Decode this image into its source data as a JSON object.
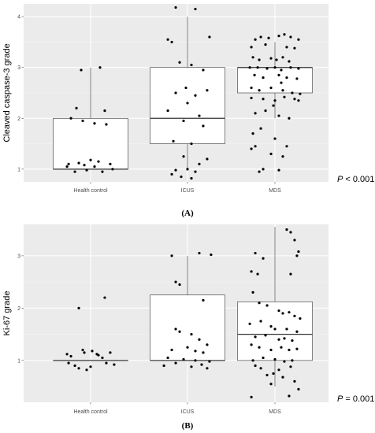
{
  "chart_data": [
    {
      "type": "box",
      "panel_label": "(A)",
      "ylabel": "Cleaved caspase-3 grade",
      "categories": [
        "Health control",
        "ICUS",
        "MDS"
      ],
      "yticks": [
        1,
        2,
        3,
        4
      ],
      "ylim": [
        0.75,
        4.25
      ],
      "annotation": {
        "p_prefix": "P",
        "p_rest": " < 0.001"
      },
      "boxes": [
        {
          "q1": 1.0,
          "median": 1.0,
          "q3": 2.0,
          "whisker_low": 1.0,
          "whisker_high": 3.0
        },
        {
          "q1": 1.5,
          "median": 2.0,
          "q3": 3.0,
          "whisker_low": 1.0,
          "whisker_high": 4.0
        },
        {
          "q1": 2.5,
          "median": 3.0,
          "q3": 3.0,
          "whisker_low": 2.0,
          "whisker_high": 3.5
        }
      ],
      "points": [
        [
          [
            -0.12,
            2.95
          ],
          [
            0.12,
            3.0
          ],
          [
            -0.18,
            2.2
          ],
          [
            0.18,
            2.15
          ],
          [
            -0.25,
            2.0
          ],
          [
            -0.1,
            1.95
          ],
          [
            0.05,
            1.9
          ],
          [
            0.2,
            1.88
          ],
          [
            -0.28,
            1.1
          ],
          [
            -0.3,
            1.05
          ],
          [
            -0.15,
            1.12
          ],
          [
            0.0,
            1.18
          ],
          [
            0.1,
            1.15
          ],
          [
            0.25,
            1.1
          ],
          [
            -0.05,
            0.98
          ],
          [
            0.15,
            0.95
          ],
          [
            -0.2,
            0.95
          ],
          [
            0.28,
            1.0
          ],
          [
            0.05,
            1.05
          ],
          [
            -0.08,
            1.08
          ]
        ],
        [
          [
            -0.15,
            4.18
          ],
          [
            0.1,
            4.15
          ],
          [
            -0.25,
            3.55
          ],
          [
            -0.2,
            3.5
          ],
          [
            0.28,
            3.6
          ],
          [
            -0.1,
            3.1
          ],
          [
            0.05,
            3.05
          ],
          [
            0.2,
            2.95
          ],
          [
            -0.02,
            2.6
          ],
          [
            0.25,
            2.55
          ],
          [
            -0.15,
            2.5
          ],
          [
            0.1,
            2.45
          ],
          [
            0.0,
            2.3
          ],
          [
            -0.25,
            2.15
          ],
          [
            0.15,
            2.05
          ],
          [
            -0.05,
            1.95
          ],
          [
            0.2,
            1.85
          ],
          [
            -0.18,
            1.55
          ],
          [
            0.05,
            1.5
          ],
          [
            -0.05,
            1.25
          ],
          [
            0.25,
            1.2
          ],
          [
            0.15,
            1.1
          ],
          [
            0.0,
            1.0
          ],
          [
            -0.15,
            0.98
          ],
          [
            0.1,
            0.95
          ],
          [
            -0.2,
            0.9
          ],
          [
            -0.08,
            0.85
          ],
          [
            0.05,
            0.82
          ]
        ],
        [
          [
            -0.25,
            3.55
          ],
          [
            -0.18,
            3.6
          ],
          [
            -0.08,
            3.58
          ],
          [
            0.05,
            3.62
          ],
          [
            0.12,
            3.65
          ],
          [
            0.2,
            3.6
          ],
          [
            0.3,
            3.55
          ],
          [
            -0.3,
            3.4
          ],
          [
            -0.12,
            3.45
          ],
          [
            0.15,
            3.4
          ],
          [
            0.25,
            3.38
          ],
          [
            -0.28,
            3.2
          ],
          [
            -0.2,
            3.15
          ],
          [
            -0.05,
            3.18
          ],
          [
            0.02,
            3.15
          ],
          [
            0.1,
            3.2
          ],
          [
            0.18,
            3.12
          ],
          [
            -0.32,
            3.0
          ],
          [
            -0.22,
            3.0
          ],
          [
            -0.1,
            2.98
          ],
          [
            0.0,
            3.0
          ],
          [
            0.08,
            2.95
          ],
          [
            0.2,
            3.0
          ],
          [
            0.3,
            2.98
          ],
          [
            -0.26,
            2.85
          ],
          [
            -0.15,
            2.8
          ],
          [
            0.05,
            2.85
          ],
          [
            0.15,
            2.8
          ],
          [
            0.28,
            2.78
          ],
          [
            -0.3,
            2.6
          ],
          [
            -0.2,
            2.55
          ],
          [
            -0.05,
            2.6
          ],
          [
            0.1,
            2.55
          ],
          [
            0.22,
            2.5
          ],
          [
            0.32,
            2.48
          ],
          [
            -0.3,
            2.4
          ],
          [
            -0.15,
            2.38
          ],
          [
            0.0,
            2.35
          ],
          [
            0.12,
            2.42
          ],
          [
            0.25,
            2.38
          ],
          [
            0.3,
            2.35
          ],
          [
            -0.25,
            2.1
          ],
          [
            -0.12,
            2.15
          ],
          [
            0.05,
            2.05
          ],
          [
            0.18,
            2.0
          ],
          [
            -0.18,
            1.8
          ],
          [
            -0.28,
            1.7
          ],
          [
            0.0,
            1.6
          ],
          [
            -0.25,
            1.45
          ],
          [
            0.15,
            1.45
          ],
          [
            -0.3,
            1.4
          ],
          [
            -0.05,
            1.3
          ],
          [
            0.1,
            1.25
          ],
          [
            -0.15,
            1.0
          ],
          [
            -0.2,
            0.95
          ],
          [
            0.05,
            0.98
          ],
          [
            -0.02,
            2.25
          ],
          [
            0.08,
            2.7
          ]
        ]
      ]
    },
    {
      "type": "box",
      "panel_label": "(B)",
      "ylabel": "Ki-67 grade",
      "categories": [
        "Health control",
        "ICUS",
        "MDS"
      ],
      "yticks": [
        1,
        2,
        3
      ],
      "ylim": [
        0.2,
        3.6
      ],
      "annotation": {
        "p_prefix": "P",
        "p_rest": " = 0.001"
      },
      "boxes": [
        {
          "q1": 1.0,
          "median": 1.0,
          "q3": 1.0,
          "whisker_low": 1.0,
          "whisker_high": 1.0
        },
        {
          "q1": 1.0,
          "median": 1.0,
          "q3": 2.25,
          "whisker_low": 1.0,
          "whisker_high": 3.0
        },
        {
          "q1": 1.0,
          "median": 1.5,
          "q3": 2.12,
          "whisker_low": 0.5,
          "whisker_high": 3.55
        }
      ],
      "points": [
        [
          [
            0.18,
            2.2
          ],
          [
            -0.15,
            2.0
          ],
          [
            -0.1,
            1.2
          ],
          [
            0.02,
            1.18
          ],
          [
            0.25,
            1.15
          ],
          [
            -0.3,
            1.12
          ],
          [
            -0.25,
            1.08
          ],
          [
            0.1,
            1.1
          ],
          [
            0.2,
            0.95
          ],
          [
            0.3,
            0.92
          ],
          [
            -0.2,
            0.9
          ],
          [
            -0.15,
            0.85
          ],
          [
            -0.05,
            0.82
          ],
          [
            0.0,
            0.88
          ],
          [
            -0.28,
            0.95
          ],
          [
            0.15,
            1.05
          ],
          [
            -0.08,
            1.15
          ],
          [
            0.08,
            1.12
          ]
        ],
        [
          [
            -0.2,
            3.0
          ],
          [
            0.15,
            3.05
          ],
          [
            0.3,
            3.02
          ],
          [
            -0.15,
            2.5
          ],
          [
            -0.1,
            2.45
          ],
          [
            0.2,
            2.15
          ],
          [
            -0.15,
            1.6
          ],
          [
            -0.1,
            1.55
          ],
          [
            0.05,
            1.5
          ],
          [
            0.15,
            1.4
          ],
          [
            0.25,
            1.3
          ],
          [
            -0.2,
            1.2
          ],
          [
            0.0,
            1.25
          ],
          [
            0.1,
            1.18
          ],
          [
            0.2,
            1.15
          ],
          [
            -0.25,
            1.05
          ],
          [
            -0.05,
            1.02
          ],
          [
            0.1,
            1.0
          ],
          [
            0.28,
            0.98
          ],
          [
            -0.15,
            0.95
          ],
          [
            -0.3,
            0.9
          ],
          [
            0.05,
            0.88
          ],
          [
            0.18,
            0.92
          ],
          [
            0.25,
            0.85
          ]
        ],
        [
          [
            0.15,
            3.5
          ],
          [
            0.2,
            3.45
          ],
          [
            0.25,
            3.3
          ],
          [
            -0.25,
            3.05
          ],
          [
            0.28,
            3.0
          ],
          [
            0.3,
            3.08
          ],
          [
            -0.15,
            2.95
          ],
          [
            -0.3,
            2.7
          ],
          [
            -0.22,
            2.65
          ],
          [
            0.2,
            2.65
          ],
          [
            -0.28,
            2.3
          ],
          [
            -0.2,
            2.1
          ],
          [
            -0.1,
            2.05
          ],
          [
            0.05,
            1.95
          ],
          [
            0.1,
            1.9
          ],
          [
            0.18,
            1.92
          ],
          [
            0.25,
            1.85
          ],
          [
            0.32,
            1.8
          ],
          [
            -0.32,
            1.7
          ],
          [
            -0.18,
            1.75
          ],
          [
            -0.05,
            1.65
          ],
          [
            0.0,
            1.6
          ],
          [
            0.15,
            1.6
          ],
          [
            0.28,
            1.55
          ],
          [
            -0.25,
            1.45
          ],
          [
            -0.12,
            1.48
          ],
          [
            0.05,
            1.4
          ],
          [
            0.12,
            1.42
          ],
          [
            0.22,
            1.38
          ],
          [
            -0.3,
            1.3
          ],
          [
            -0.2,
            1.25
          ],
          [
            -0.05,
            1.2
          ],
          [
            0.08,
            1.25
          ],
          [
            0.18,
            1.2
          ],
          [
            0.28,
            1.22
          ],
          [
            -0.28,
            1.0
          ],
          [
            -0.15,
            1.05
          ],
          [
            0.0,
            1.02
          ],
          [
            0.12,
            0.98
          ],
          [
            0.22,
            1.0
          ],
          [
            -0.25,
            0.9
          ],
          [
            -0.18,
            0.85
          ],
          [
            0.05,
            0.82
          ],
          [
            0.2,
            0.88
          ],
          [
            -0.1,
            0.72
          ],
          [
            0.1,
            0.68
          ],
          [
            0.25,
            0.6
          ],
          [
            -0.05,
            0.55
          ],
          [
            0.3,
            0.45
          ],
          [
            -0.3,
            0.3
          ],
          [
            0.18,
            0.32
          ],
          [
            -0.02,
            0.75
          ]
        ]
      ]
    }
  ]
}
